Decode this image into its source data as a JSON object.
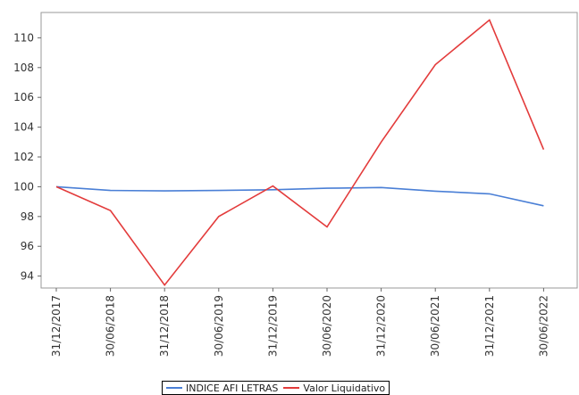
{
  "chart_data": {
    "type": "line",
    "title": "",
    "xlabel": "",
    "ylabel": "",
    "categories": [
      "31/12/2017",
      "30/06/2018",
      "31/12/2018",
      "30/06/2019",
      "31/12/2019",
      "30/06/2020",
      "31/12/2020",
      "30/06/2021",
      "31/12/2021",
      "30/06/2022"
    ],
    "ylim": [
      93.2,
      111.7
    ],
    "yticks": [
      94,
      96,
      98,
      100,
      102,
      104,
      106,
      108,
      110
    ],
    "grid": false,
    "legend_position": "bottom",
    "series": [
      {
        "name": "INDICE AFI LETRAS",
        "color": "#4a7fd6",
        "values": [
          100.0,
          99.75,
          99.72,
          99.75,
          99.8,
          99.9,
          99.95,
          99.7,
          99.52,
          98.72
        ]
      },
      {
        "name": "Valor Liquidativo",
        "color": "#e33b3b",
        "values": [
          100.0,
          98.4,
          93.4,
          98.0,
          100.05,
          97.3,
          103.0,
          108.2,
          111.2,
          102.5
        ]
      }
    ]
  }
}
